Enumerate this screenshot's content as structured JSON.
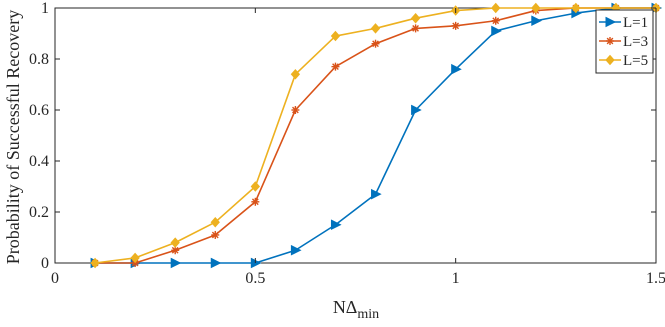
{
  "chart_data": {
    "type": "line",
    "title": "",
    "xlabel": {
      "main": "NΔ",
      "sub": "min"
    },
    "ylabel": "Probability of Successful Recovery",
    "xlim": [
      0,
      1.5
    ],
    "ylim": [
      0,
      1
    ],
    "xticks": [
      0,
      0.5,
      1,
      1.5
    ],
    "xtick_labels": [
      "0",
      "0.5",
      "1",
      "1.5"
    ],
    "yticks": [
      0,
      0.2,
      0.4,
      0.6,
      0.8,
      1
    ],
    "ytick_labels": [
      "0",
      "0.2",
      "0.4",
      "0.6",
      "0.8",
      "1"
    ],
    "grid": false,
    "legend_position": "top-right",
    "x": [
      0.1,
      0.2,
      0.3,
      0.4,
      0.5,
      0.6,
      0.7,
      0.8,
      0.9,
      1.0,
      1.1,
      1.2,
      1.3,
      1.4,
      1.5
    ],
    "series": [
      {
        "name": "L=1",
        "color": "#0072BD",
        "marker": "triangle-right",
        "values": [
          0,
          0,
          0,
          0,
          0,
          0.05,
          0.15,
          0.27,
          0.6,
          0.76,
          0.91,
          0.95,
          0.98,
          1,
          1
        ]
      },
      {
        "name": "L=3",
        "color": "#D95319",
        "marker": "asterisk",
        "values": [
          0,
          0,
          0.05,
          0.11,
          0.24,
          0.6,
          0.77,
          0.86,
          0.92,
          0.93,
          0.95,
          0.99,
          1,
          1,
          1
        ]
      },
      {
        "name": "L=5",
        "color": "#EDB120",
        "marker": "diamond",
        "values": [
          0,
          0.02,
          0.08,
          0.16,
          0.3,
          0.74,
          0.89,
          0.92,
          0.96,
          0.99,
          1,
          1,
          1,
          1,
          1
        ]
      }
    ]
  }
}
